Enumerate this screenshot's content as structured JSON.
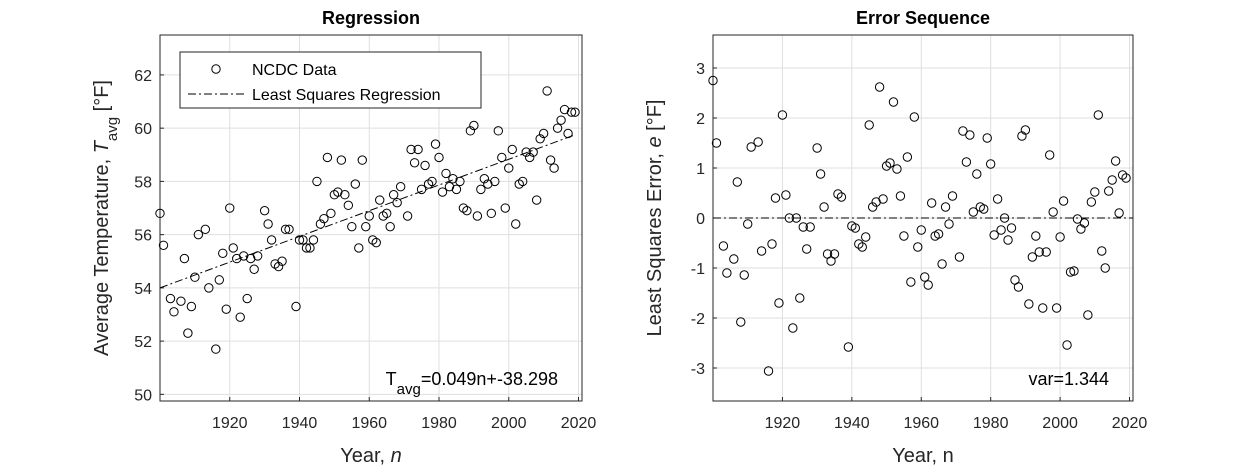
{
  "chart_data": [
    {
      "type": "scatter",
      "title": "Regression",
      "xlabel": [
        "Year, ",
        "n"
      ],
      "ylabel": [
        "Average Temperature, ",
        "T",
        "avg",
        " [°F]"
      ],
      "xlim": [
        1900,
        2021
      ],
      "ylim": [
        49.75,
        63.5
      ],
      "xticks": [
        1920,
        1940,
        1960,
        1980,
        2000,
        2020
      ],
      "yticks": [
        50,
        52,
        54,
        56,
        58,
        60,
        62
      ],
      "grid": true,
      "legend": "upper left",
      "x": [
        1900,
        1901,
        1903,
        1904,
        1906,
        1907,
        1908,
        1909,
        1910,
        1911,
        1913,
        1914,
        1916,
        1917,
        1918,
        1919,
        1920,
        1921,
        1922,
        1923,
        1924,
        1925,
        1926,
        1927,
        1928,
        1930,
        1931,
        1932,
        1933,
        1934,
        1935,
        1936,
        1937,
        1939,
        1940,
        1941,
        1942,
        1943,
        1944,
        1945,
        1946,
        1947,
        1948,
        1949,
        1950,
        1951,
        1952,
        1953,
        1954,
        1955,
        1956,
        1957,
        1958,
        1959,
        1960,
        1961,
        1962,
        1963,
        1964,
        1965,
        1966,
        1967,
        1968,
        1969,
        1971,
        1972,
        1973,
        1974,
        1975,
        1976,
        1977,
        1978,
        1979,
        1980,
        1981,
        1982,
        1983,
        1984,
        1985,
        1986,
        1987,
        1988,
        1989,
        1990,
        1991,
        1992,
        1993,
        1994,
        1995,
        1996,
        1997,
        1998,
        1999,
        2000,
        2001,
        2002,
        2003,
        2004,
        2005,
        2006,
        2007,
        2008,
        2009,
        2010,
        2011,
        2012,
        2013,
        2014,
        2015,
        2016,
        2017,
        2018,
        2019
      ],
      "series": [
        {
          "name": "NCDC Data",
          "color": "#000000",
          "values": [
            56.8,
            55.6,
            53.6,
            53.1,
            53.5,
            55.1,
            52.3,
            53.3,
            54.4,
            56.0,
            56.2,
            54.0,
            51.7,
            54.3,
            55.3,
            53.2,
            57.0,
            55.5,
            55.1,
            52.9,
            55.2,
            53.6,
            55.1,
            54.7,
            55.2,
            56.9,
            56.4,
            55.8,
            54.9,
            54.8,
            55.0,
            56.2,
            56.2,
            53.3,
            55.8,
            55.8,
            55.5,
            55.5,
            55.8,
            58.0,
            56.4,
            56.6,
            58.9,
            56.8,
            57.5,
            57.6,
            58.8,
            57.5,
            57.1,
            56.3,
            57.9,
            55.5,
            58.8,
            56.3,
            56.7,
            55.8,
            55.7,
            57.3,
            56.7,
            56.8,
            56.3,
            57.5,
            57.2,
            57.8,
            56.7,
            59.2,
            58.7,
            59.2,
            57.7,
            58.6,
            57.9,
            58.0,
            59.4,
            58.9,
            57.6,
            58.3,
            57.8,
            58.1,
            57.7,
            58.0,
            57.0,
            56.9,
            59.9,
            60.1,
            56.7,
            57.7,
            58.1,
            57.9,
            56.8,
            58.0,
            59.9,
            58.9,
            57.0,
            58.5,
            59.2,
            56.4,
            57.9,
            58.0,
            59.1,
            58.9,
            59.1,
            57.3,
            59.6,
            59.8,
            61.4,
            58.8,
            58.5,
            60.0,
            60.3,
            60.7,
            59.8,
            60.6,
            60.6
          ]
        }
      ],
      "line": {
        "name": "Least Squares Regression",
        "color": "#000000",
        "x": [
          1900,
          2019
        ],
        "values": [
          54.0,
          59.75
        ]
      },
      "annotation": [
        "T",
        "avg",
        "=0.049n+-38.298"
      ]
    },
    {
      "type": "scatter",
      "title": "Error Sequence",
      "xlabel": [
        "Year, n"
      ],
      "ylabel": [
        "Least Squares Error, ",
        "e",
        " [°F]"
      ],
      "xlim": [
        1900,
        2021
      ],
      "ylim": [
        -3.66,
        3.66
      ],
      "xticks": [
        1920,
        1940,
        1960,
        1980,
        2000,
        2020
      ],
      "yticks": [
        -3,
        -2,
        -1,
        0,
        1,
        2,
        3
      ],
      "grid": true,
      "x": [
        1900,
        1901,
        1903,
        1904,
        1906,
        1907,
        1908,
        1909,
        1910,
        1911,
        1913,
        1914,
        1916,
        1917,
        1918,
        1919,
        1920,
        1921,
        1922,
        1923,
        1924,
        1925,
        1926,
        1927,
        1928,
        1930,
        1931,
        1932,
        1933,
        1934,
        1935,
        1936,
        1937,
        1939,
        1940,
        1941,
        1942,
        1943,
        1944,
        1945,
        1946,
        1947,
        1948,
        1949,
        1950,
        1951,
        1952,
        1953,
        1954,
        1955,
        1956,
        1957,
        1958,
        1959,
        1960,
        1961,
        1962,
        1963,
        1964,
        1965,
        1966,
        1967,
        1968,
        1969,
        1971,
        1972,
        1973,
        1974,
        1975,
        1976,
        1977,
        1978,
        1979,
        1980,
        1981,
        1982,
        1983,
        1984,
        1985,
        1986,
        1987,
        1988,
        1989,
        1990,
        1991,
        1992,
        1993,
        1994,
        1995,
        1996,
        1997,
        1998,
        1999,
        2000,
        2001,
        2002,
        2003,
        2004,
        2005,
        2006,
        2007,
        2008,
        2009,
        2010,
        2011,
        2012,
        2013,
        2014,
        2015,
        2016,
        2017,
        2018,
        2019
      ],
      "series": [
        {
          "name": "Error",
          "color": "#000000",
          "values": [
            2.75,
            1.5,
            -0.56,
            -1.1,
            -0.82,
            0.72,
            -2.08,
            -1.14,
            -0.12,
            1.42,
            1.52,
            -0.66,
            -3.06,
            -0.52,
            0.4,
            -1.7,
            2.06,
            0.46,
            0,
            -2.2,
            0,
            -1.6,
            -0.18,
            -0.62,
            -0.18,
            1.4,
            0.88,
            0.22,
            -0.72,
            -0.86,
            -0.72,
            0.48,
            0.42,
            -2.58,
            -0.16,
            -0.2,
            -0.52,
            -0.58,
            -0.38,
            1.86,
            0.22,
            0.32,
            2.62,
            0.38,
            1.04,
            1.1,
            2.32,
            0.98,
            0.44,
            -0.36,
            1.22,
            -1.28,
            2.02,
            -0.58,
            -0.24,
            -1.18,
            -1.34,
            0.3,
            -0.36,
            -0.32,
            -0.92,
            0.22,
            -0.12,
            0.44,
            -0.78,
            1.74,
            1.12,
            1.66,
            0.12,
            0.88,
            0.22,
            0.18,
            1.6,
            1.08,
            -0.34,
            0.38,
            -0.24,
            0,
            -0.44,
            -0.2,
            -1.24,
            -1.38,
            1.64,
            1.76,
            -1.72,
            -0.78,
            -0.36,
            -0.68,
            -1.8,
            -0.68,
            1.26,
            0.12,
            -1.8,
            -0.38,
            0.34,
            -2.54,
            -1.08,
            -1.06,
            -0.02,
            -0.22,
            -0.1,
            -1.94,
            0.32,
            0.52,
            2.06,
            -0.66,
            -1,
            0.54,
            0.76,
            1.14,
            0.1,
            0.86,
            0.8
          ]
        }
      ],
      "reference_line": 0,
      "annotation": [
        "var=1.344"
      ]
    }
  ]
}
